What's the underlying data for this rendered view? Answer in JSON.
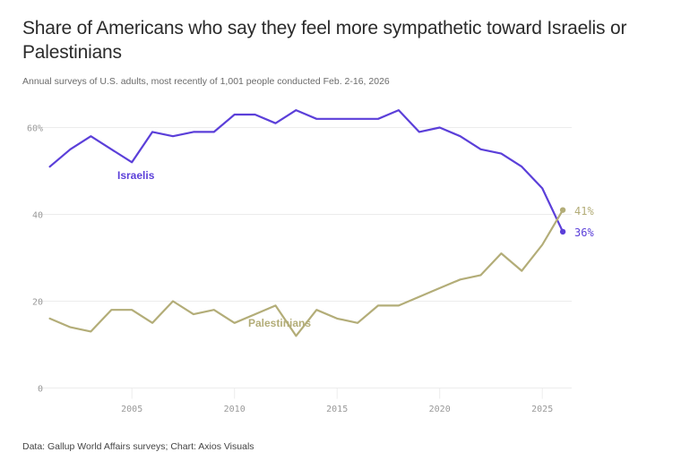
{
  "chart_data": {
    "type": "line",
    "title": "Share of Americans who say they feel more sympathetic toward Israelis or Palestinians",
    "subtitle": "Annual surveys of U.S. adults, most recently of 1,001 people conducted Feb. 2-16, 2026",
    "source": "Data: Gallup World Affairs surveys; Chart: Axios Visuals",
    "xlabel": "",
    "ylabel": "",
    "x": [
      2001,
      2002,
      2003,
      2004,
      2005,
      2006,
      2007,
      2008,
      2009,
      2010,
      2011,
      2012,
      2013,
      2014,
      2015,
      2016,
      2017,
      2018,
      2019,
      2020,
      2021,
      2022,
      2023,
      2024,
      2025,
      2026
    ],
    "xlim": [
      2001,
      2026
    ],
    "ylim": [
      0,
      65
    ],
    "x_ticks": [
      2005,
      2010,
      2015,
      2020,
      2025
    ],
    "x_tick_labels": [
      "2005",
      "2010",
      "2015",
      "2020",
      "2025"
    ],
    "y_ticks": [
      0,
      20,
      40,
      60
    ],
    "y_tick_labels": [
      "0",
      "20",
      "40",
      "60%"
    ],
    "grid": true,
    "legend": "inline labels",
    "series": [
      {
        "name": "Israelis",
        "color": "#5b3fd9",
        "values": [
          51,
          55,
          58,
          55,
          52,
          59,
          58,
          59,
          59,
          63,
          63,
          61,
          64,
          62,
          62,
          62,
          62,
          64,
          59,
          60,
          58,
          55,
          54,
          51,
          46,
          36
        ],
        "end_label": "36%"
      },
      {
        "name": "Palestinians",
        "color": "#b3ad78",
        "values": [
          16,
          14,
          13,
          18,
          18,
          15,
          20,
          17,
          18,
          15,
          17,
          19,
          12,
          18,
          16,
          15,
          19,
          19,
          21,
          23,
          25,
          26,
          31,
          27,
          33,
          41
        ],
        "end_label": "41%"
      }
    ]
  }
}
